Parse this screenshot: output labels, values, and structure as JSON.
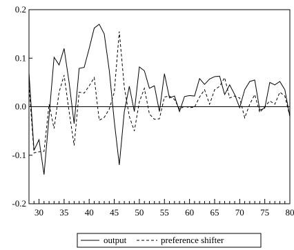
{
  "chart_data": {
    "type": "line",
    "title": "",
    "xlabel": "",
    "ylabel": "",
    "xlim": [
      28,
      80
    ],
    "ylim": [
      -0.2,
      0.2
    ],
    "x_ticks": [
      30,
      35,
      40,
      45,
      50,
      55,
      60,
      65,
      70,
      75,
      80
    ],
    "y_ticks": [
      0.2,
      0.1,
      0.0,
      -0.1,
      -0.2
    ],
    "y_tick_labels": [
      "0.2",
      "0.1",
      "0.0",
      "-0.1",
      "-0.2"
    ],
    "x_tick_labels": [
      "30",
      "35",
      "40",
      "45",
      "50",
      "55",
      "60",
      "65",
      "70",
      "75",
      "80"
    ],
    "zero_line": true,
    "grid": false,
    "legend_position": "bottom-center",
    "x": [
      28,
      29,
      30,
      31,
      32,
      33,
      34,
      35,
      36,
      37,
      38,
      39,
      40,
      41,
      42,
      43,
      44,
      45,
      46,
      47,
      48,
      49,
      50,
      51,
      52,
      53,
      54,
      55,
      56,
      57,
      58,
      59,
      60,
      61,
      62,
      63,
      64,
      65,
      66,
      67,
      68,
      69,
      70,
      71,
      72,
      73,
      74,
      75,
      76,
      77,
      78,
      79,
      80
    ],
    "series": [
      {
        "name": "output",
        "style": "solid",
        "values": [
          0.07,
          -0.09,
          -0.068,
          -0.14,
          -0.02,
          0.102,
          0.086,
          0.12,
          0.05,
          -0.035,
          0.079,
          0.081,
          0.12,
          0.162,
          0.17,
          0.15,
          0.075,
          -0.03,
          -0.12,
          -0.01,
          0.042,
          -0.01,
          0.082,
          0.074,
          0.038,
          0.043,
          -0.01,
          0.068,
          0.018,
          0.022,
          -0.01,
          0.021,
          0.023,
          0.022,
          0.058,
          0.046,
          0.057,
          0.062,
          0.063,
          0.025,
          0.045,
          0.025,
          -0.002,
          0.035,
          0.052,
          0.055,
          -0.007,
          -0.003,
          0.05,
          0.045,
          0.052,
          0.035,
          -0.02
        ]
      },
      {
        "name": "preference shifter",
        "style": "dashed",
        "values": [
          0.045,
          -0.095,
          -0.093,
          -0.092,
          0.005,
          -0.045,
          0.03,
          0.065,
          -0.01,
          -0.08,
          0.03,
          0.028,
          0.043,
          0.06,
          -0.028,
          -0.022,
          -0.005,
          0.03,
          0.155,
          0.04,
          -0.02,
          -0.05,
          0.01,
          0.038,
          -0.015,
          -0.026,
          -0.025,
          0.02,
          0.022,
          0.015,
          -0.005,
          0.001,
          -0.002,
          -0.001,
          0.02,
          0.035,
          0.005,
          0.035,
          0.042,
          0.06,
          0.018,
          0.022,
          0.018,
          -0.023,
          0.005,
          0.025,
          -0.012,
          0.0,
          0.012,
          0.005,
          0.03,
          0.022,
          -0.02
        ]
      }
    ]
  }
}
